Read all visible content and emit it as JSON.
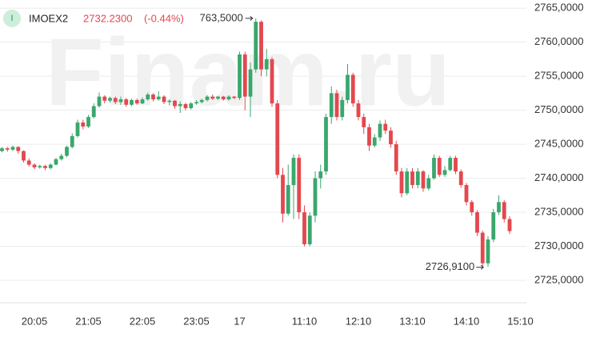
{
  "chart_data": {
    "type": "candlestick",
    "watermark": "Finam.ru",
    "ticker": "IMOEX2",
    "last_price": "2732.2300",
    "change": "(-0.44%)",
    "icon_label": "I",
    "up_color": "#3aa76d",
    "down_color": "#e3484f",
    "header_change_color": "#e3484f",
    "grid": true,
    "ylim": [
      2721.7,
      2766.2
    ],
    "yticks": [
      {
        "value": 2725,
        "label": "2725,0000"
      },
      {
        "value": 2730,
        "label": "2730,0000"
      },
      {
        "value": 2735,
        "label": "2735,0000"
      },
      {
        "value": 2740,
        "label": "2740,0000"
      },
      {
        "value": 2745,
        "label": "2745,0000"
      },
      {
        "value": 2750,
        "label": "2750,0000"
      },
      {
        "value": 2755,
        "label": "2755,0000"
      },
      {
        "value": 2760,
        "label": "2760,0000"
      },
      {
        "value": 2765,
        "label": "2765,0000"
      }
    ],
    "categories": [
      null,
      null,
      null,
      null,
      null,
      null,
      "20:05",
      null,
      null,
      null,
      null,
      null,
      null,
      null,
      null,
      null,
      "21:05",
      null,
      null,
      null,
      null,
      null,
      null,
      null,
      null,
      null,
      "22:05",
      null,
      null,
      null,
      null,
      null,
      null,
      null,
      null,
      null,
      "23:05",
      null,
      null,
      null,
      null,
      null,
      null,
      null,
      "17",
      null,
      null,
      null,
      null,
      null,
      null,
      null,
      null,
      null,
      null,
      null,
      "11:10",
      null,
      null,
      null,
      null,
      null,
      null,
      null,
      null,
      null,
      "12:10",
      null,
      null,
      null,
      null,
      null,
      null,
      null,
      null,
      null,
      "13:10",
      null,
      null,
      null,
      null,
      null,
      null,
      null,
      null,
      null,
      "14:10",
      null,
      null,
      null,
      null,
      null,
      null,
      null,
      null,
      null,
      "15:10"
    ],
    "open": [
      2744.0,
      2744.4,
      2744.2,
      2744.6,
      2744.0,
      2742.6,
      2742.0,
      2741.6,
      2741.8,
      2741.5,
      2742.0,
      2742.8,
      2743.3,
      2744.6,
      2746.2,
      2748.2,
      2747.6,
      2749.0,
      2750.6,
      2752.0,
      2751.4,
      2751.8,
      2751.2,
      2751.6,
      2750.8,
      2751.5,
      2751.0,
      2751.6,
      2752.3,
      2751.6,
      2752.0,
      2751.2,
      2751.4,
      2750.6,
      2750.9,
      2750.3,
      2751.0,
      2751.2,
      2751.5,
      2752.0,
      2751.7,
      2752.0,
      2751.6,
      2752.0,
      2751.8,
      2758.2,
      2752.0,
      2756.0,
      2763.0,
      2756.0,
      2757.5,
      2751.0,
      2740.5,
      2734.8,
      2739.0,
      2743.0,
      2735.0,
      2730.3,
      2734.5,
      2740.0,
      2741.0,
      2749.0,
      2752.5,
      2749.0,
      2751.5,
      2755.2,
      2751.0,
      2749.0,
      2747.5,
      2744.8,
      2746.0,
      2748.0,
      2747.0,
      2745.0,
      2741.0,
      2737.8,
      2741.0,
      2739.0,
      2741.0,
      2738.5,
      2740.0,
      2743.0,
      2740.5,
      2741.2,
      2743.0,
      2741.0,
      2739.0,
      2736.5,
      2735.0,
      2732.0,
      2727.5,
      2731.0,
      2735.0,
      2736.5,
      2734.0,
      null,
      null
    ],
    "high": [
      2744.6,
      2744.6,
      2744.8,
      2744.7,
      2744.1,
      2742.9,
      2742.2,
      2742.0,
      2742.0,
      2742.2,
      2743.0,
      2743.6,
      2744.8,
      2746.6,
      2748.6,
      2748.6,
      2749.3,
      2751.0,
      2752.6,
      2752.2,
      2752.0,
      2752.0,
      2752.0,
      2751.8,
      2751.7,
      2751.7,
      2751.9,
      2752.6,
      2752.5,
      2752.8,
      2752.2,
      2751.6,
      2751.5,
      2751.3,
      2751.1,
      2751.2,
      2751.5,
      2751.7,
      2752.2,
      2752.3,
      2752.1,
      2752.1,
      2752.2,
      2752.1,
      2758.6,
      2758.6,
      2757.0,
      2763.5,
      2763.2,
      2759.0,
      2757.8,
      2751.5,
      2741.5,
      2742.0,
      2743.5,
      2743.5,
      2736.0,
      2735.0,
      2741.0,
      2742.0,
      2749.5,
      2753.5,
      2753.0,
      2752.0,
      2756.8,
      2755.5,
      2751.5,
      2749.5,
      2748.0,
      2746.5,
      2748.5,
      2748.6,
      2747.5,
      2745.5,
      2741.5,
      2741.5,
      2741.5,
      2741.5,
      2741.2,
      2740.5,
      2743.5,
      2743.3,
      2741.8,
      2743.3,
      2743.3,
      2741.3,
      2739.3,
      2736.8,
      2735.3,
      2732.3,
      2731.5,
      2735.5,
      2737.5,
      2736.8,
      2734.4,
      null,
      null
    ],
    "low": [
      2743.8,
      2743.9,
      2744.0,
      2743.6,
      2742.3,
      2741.7,
      2741.3,
      2741.4,
      2741.2,
      2741.3,
      2741.9,
      2742.6,
      2743.1,
      2744.4,
      2746.0,
      2747.2,
      2747.4,
      2748.8,
      2750.4,
      2751.0,
      2751.1,
      2750.9,
      2750.8,
      2750.5,
      2750.6,
      2750.8,
      2750.9,
      2751.4,
      2751.3,
      2751.4,
      2750.9,
      2750.7,
      2750.2,
      2749.6,
      2750.0,
      2750.1,
      2750.8,
      2751.0,
      2751.3,
      2751.5,
      2751.5,
      2751.4,
      2751.4,
      2751.6,
      2751.5,
      2750.0,
      2749.0,
      2755.5,
      2755.0,
      2755.0,
      2750.5,
      2740.0,
      2733.5,
      2734.5,
      2734.0,
      2734.0,
      2730.0,
      2730.0,
      2733.5,
      2738.5,
      2740.5,
      2748.0,
      2748.5,
      2748.5,
      2751.0,
      2750.5,
      2748.5,
      2746.5,
      2744.0,
      2744.5,
      2745.5,
      2746.5,
      2744.5,
      2740.5,
      2737.2,
      2737.5,
      2738.5,
      2738.5,
      2738.0,
      2738.2,
      2739.8,
      2740.2,
      2740.2,
      2741.0,
      2740.6,
      2738.6,
      2736.0,
      2734.5,
      2731.5,
      2726.91,
      2727.0,
      2730.6,
      2734.6,
      2733.5,
      2731.8,
      null,
      null
    ],
    "close": [
      2744.4,
      2744.2,
      2744.6,
      2744.0,
      2742.6,
      2742.0,
      2741.6,
      2741.8,
      2741.5,
      2742.0,
      2742.8,
      2743.3,
      2744.6,
      2746.2,
      2748.2,
      2747.6,
      2749.0,
      2750.6,
      2752.0,
      2751.4,
      2751.8,
      2751.2,
      2751.6,
      2750.8,
      2751.5,
      2751.0,
      2751.6,
      2752.3,
      2751.6,
      2752.0,
      2751.2,
      2751.4,
      2750.6,
      2750.9,
      2750.3,
      2751.0,
      2751.2,
      2751.5,
      2752.0,
      2751.7,
      2752.0,
      2751.6,
      2752.0,
      2751.8,
      2758.2,
      2752.0,
      2756.0,
      2763.0,
      2756.0,
      2757.5,
      2751.0,
      2740.5,
      2734.8,
      2739.0,
      2743.0,
      2735.0,
      2730.3,
      2734.5,
      2740.0,
      2741.0,
      2749.0,
      2752.5,
      2749.0,
      2751.5,
      2755.2,
      2751.0,
      2749.0,
      2747.5,
      2744.8,
      2746.0,
      2748.0,
      2747.0,
      2745.0,
      2741.0,
      2737.8,
      2741.0,
      2739.0,
      2741.0,
      2738.5,
      2740.0,
      2743.0,
      2740.5,
      2741.2,
      2743.0,
      2741.0,
      2739.0,
      2736.5,
      2735.0,
      2732.0,
      2727.5,
      2731.0,
      2735.0,
      2736.5,
      2734.0,
      2732.23,
      null,
      null
    ],
    "annotations": [
      "763,5000",
      "2726,9100"
    ]
  }
}
